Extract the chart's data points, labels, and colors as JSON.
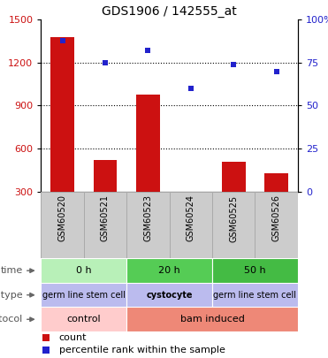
{
  "title": "GDS1906 / 142555_at",
  "samples": [
    "GSM60520",
    "GSM60521",
    "GSM60523",
    "GSM60524",
    "GSM60525",
    "GSM60526"
  ],
  "counts": [
    1380,
    520,
    980,
    270,
    510,
    430
  ],
  "percentiles": [
    88,
    75,
    82,
    60,
    74,
    70
  ],
  "ylim_left": [
    300,
    1500
  ],
  "ylim_right": [
    0,
    100
  ],
  "yticks_left": [
    300,
    600,
    900,
    1200,
    1500
  ],
  "yticks_right": [
    0,
    25,
    50,
    75,
    100
  ],
  "bar_color": "#cc1111",
  "scatter_color": "#2222cc",
  "bar_width": 0.55,
  "time_labels": [
    "0 h",
    "20 h",
    "50 h"
  ],
  "time_colors": [
    "#b8f0b8",
    "#55cc55",
    "#44bb44"
  ],
  "cell_type_labels": [
    "germ line stem cell",
    "cystocyte",
    "germ line stem cell"
  ],
  "cell_type_color": "#bbbbee",
  "protocol_labels": [
    "control",
    "bam induced"
  ],
  "protocol_colors": [
    "#ffcccc",
    "#ee8877"
  ],
  "tick_label_color_left": "#cc1111",
  "tick_label_color_right": "#2222cc",
  "legend_count_color": "#cc1111",
  "legend_pct_color": "#2222cc",
  "sample_bg_color": "#cccccc",
  "sample_border_color": "#aaaaaa"
}
